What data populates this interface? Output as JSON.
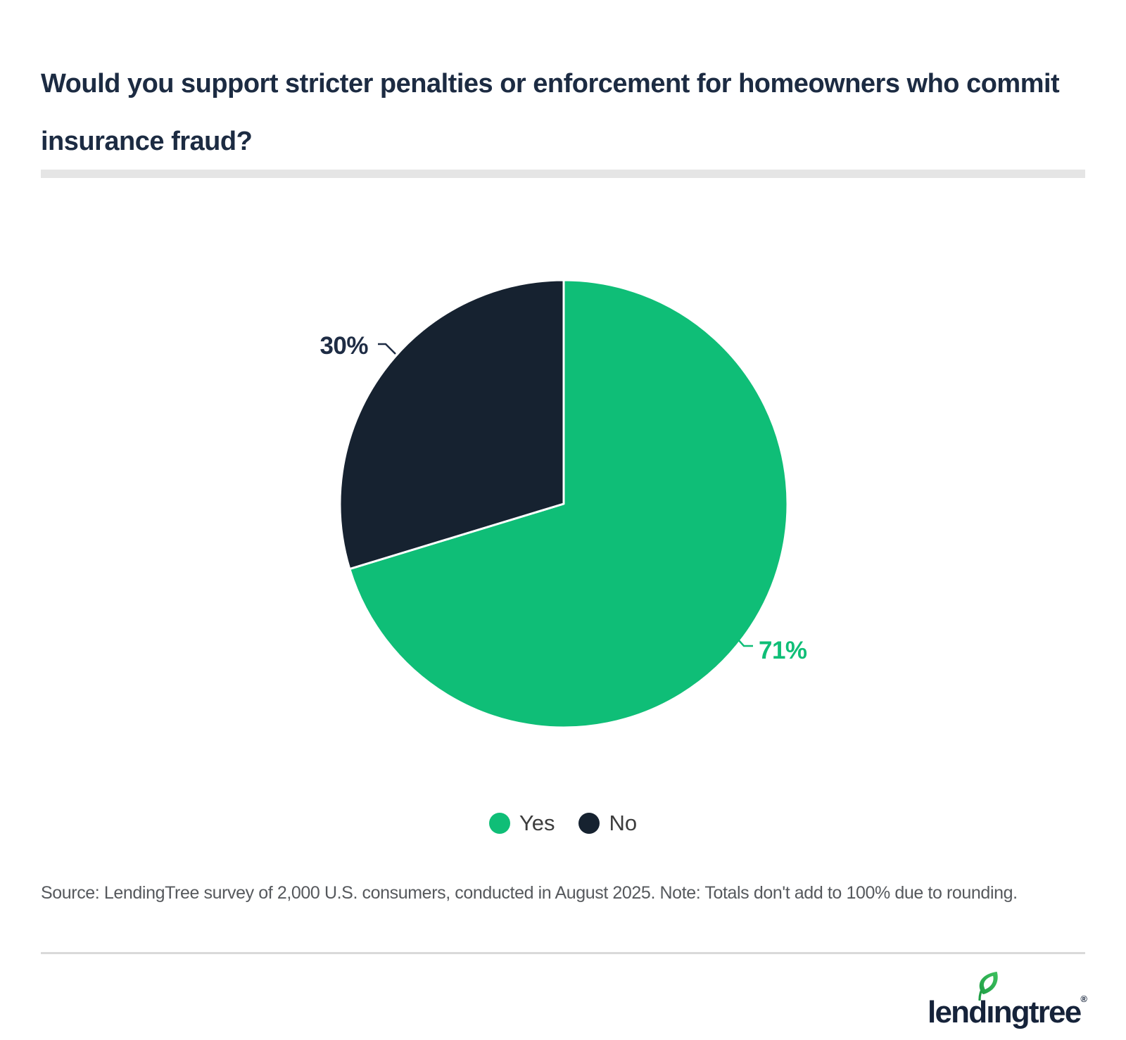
{
  "header": {
    "title": "Would you support stricter penalties or enforcement for homeowners who commit insurance fraud?"
  },
  "chart_data": {
    "type": "pie",
    "title": "Would you support stricter penalties or enforcement for homeowners who commit insurance fraud?",
    "start_angle_deg": 0,
    "direction": "clockwise",
    "legend_position": "bottom",
    "slices": [
      {
        "label": "Yes",
        "value": 71,
        "display": "71%",
        "color": "#0fbe77",
        "label_color": "#0fbe77"
      },
      {
        "label": "No",
        "value": 30,
        "display": "30%",
        "color": "#162230",
        "label_color": "#1e2c44"
      }
    ],
    "note": "Totals don't add to 100% due to rounding."
  },
  "colors": {
    "title_navy": "#1c2b42",
    "accent_green": "#0fbe77",
    "accent_navy": "#162230",
    "divider_gray": "#e5e5e5",
    "rule_gray": "#d9d9d9",
    "legend_text": "#3d3d3d",
    "source_text": "#56595d",
    "logo_navy": "#16233a",
    "leaf_green_light": "#3ec25f",
    "leaf_green_dark": "#1f9e45"
  },
  "footer": {
    "source": "Source: LendingTree survey of 2,000 U.S. consumers, conducted in August 2025. Note: Totals don't add to 100% due to rounding.",
    "logo_wordmark": "lendıngtree",
    "logo_registered": "®"
  }
}
